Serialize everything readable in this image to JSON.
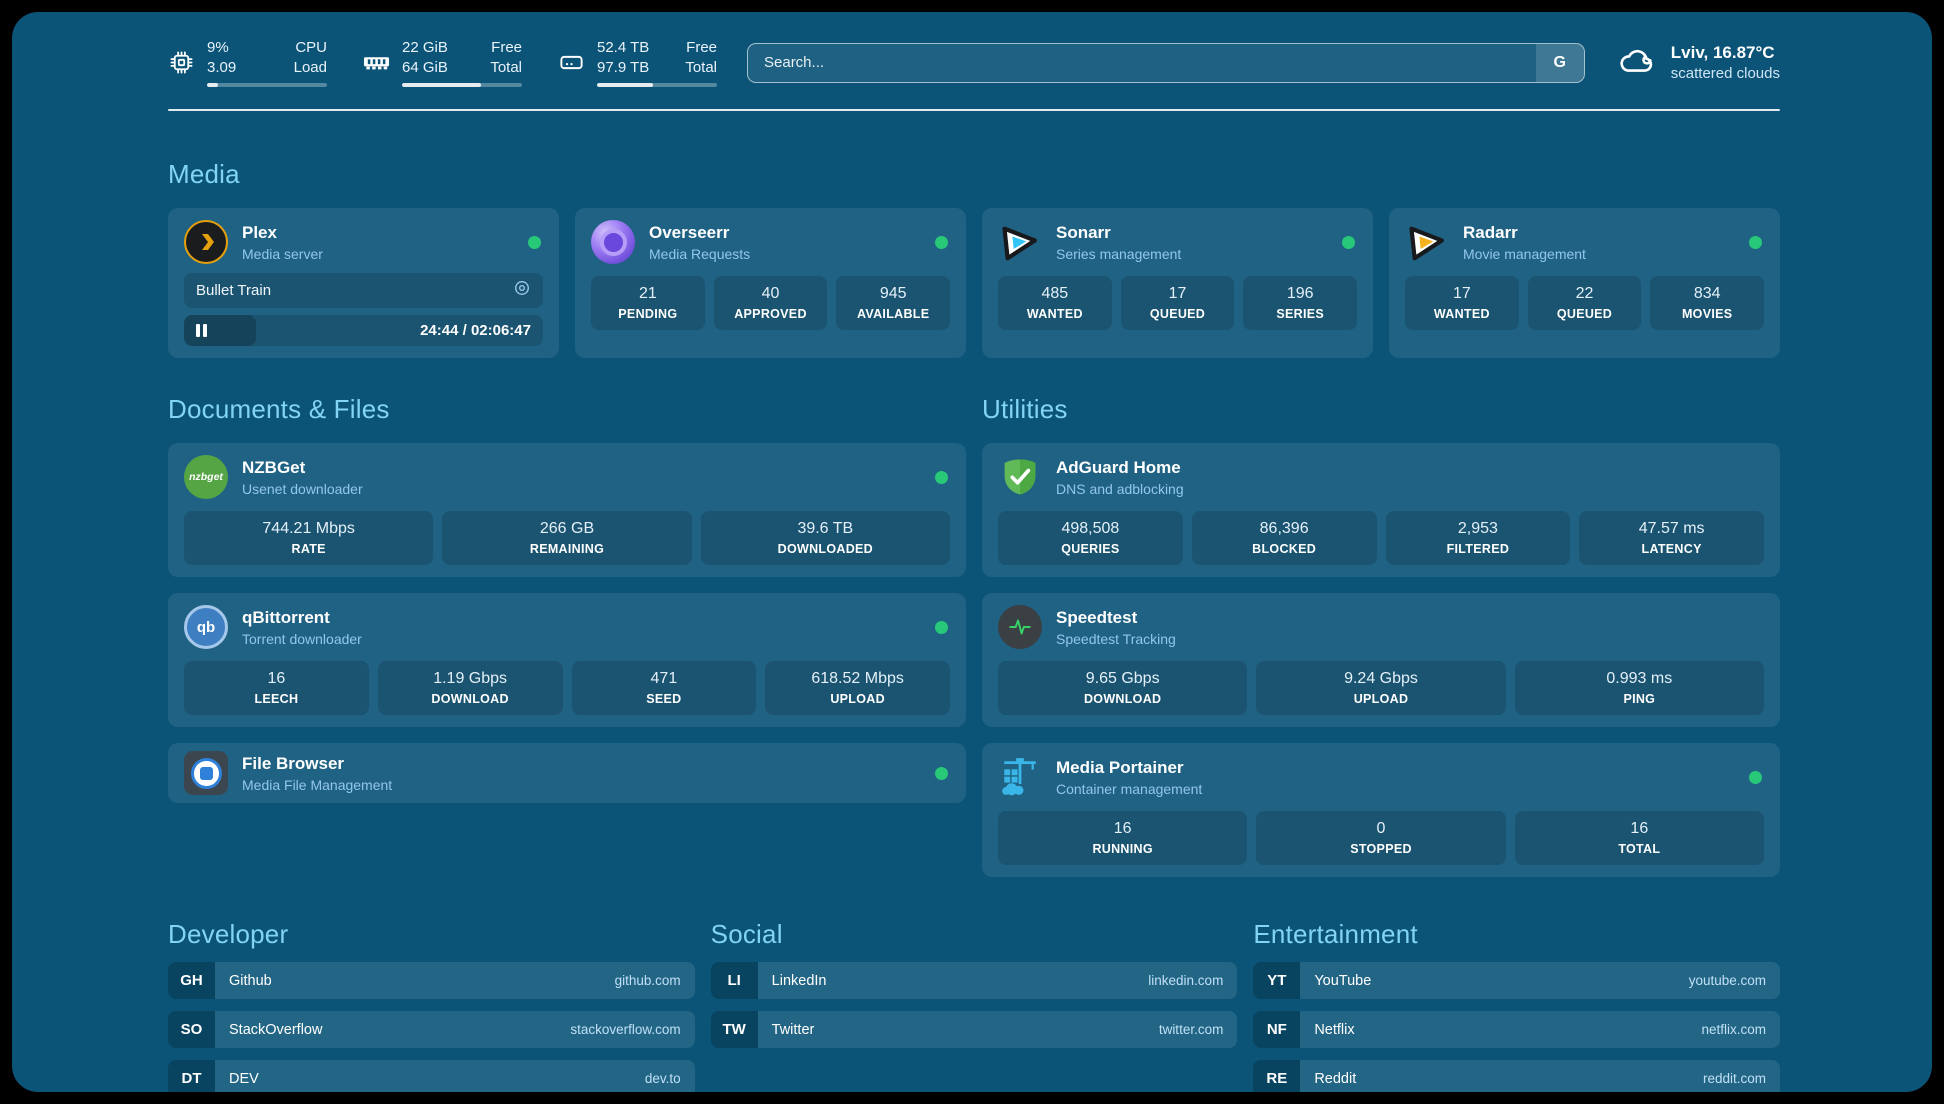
{
  "header": {
    "stats": [
      {
        "icon": "cpu-icon",
        "value_top": "9%",
        "value_bottom": "3.09",
        "label_top": "CPU",
        "label_bottom": "Load",
        "progress_pct": 9
      },
      {
        "icon": "ram-icon",
        "value_top": "22 GiB",
        "value_bottom": "64 GiB",
        "label_top": "Free",
        "label_bottom": "Total",
        "progress_pct": 66
      },
      {
        "icon": "disk-icon",
        "value_top": "52.4 TB",
        "value_bottom": "97.9 TB",
        "label_top": "Free",
        "label_bottom": "Total",
        "progress_pct": 47
      }
    ],
    "search": {
      "placeholder": "Search...",
      "button_label": "G"
    },
    "weather": {
      "icon": "cloud-icon",
      "location_temp": "Lviv, 16.87°C",
      "condition": "scattered clouds"
    }
  },
  "media": {
    "title": "Media",
    "plex": {
      "icon": "plex-icon",
      "name": "Plex",
      "subtitle": "Media server",
      "online": true,
      "now_playing": {
        "title": "Bullet Train",
        "time": "24:44 / 02:06:47",
        "progress_pct": 20
      }
    },
    "overseerr": {
      "icon": "overseerr-icon",
      "name": "Overseerr",
      "subtitle": "Media Requests",
      "online": true,
      "stats": [
        {
          "value": "21",
          "label": "PENDING"
        },
        {
          "value": "40",
          "label": "APPROVED"
        },
        {
          "value": "945",
          "label": "AVAILABLE"
        }
      ]
    },
    "sonarr": {
      "icon": "sonarr-icon",
      "name": "Sonarr",
      "subtitle": "Series management",
      "online": true,
      "stats": [
        {
          "value": "485",
          "label": "WANTED"
        },
        {
          "value": "17",
          "label": "QUEUED"
        },
        {
          "value": "196",
          "label": "SERIES"
        }
      ]
    },
    "radarr": {
      "icon": "radarr-icon",
      "name": "Radarr",
      "subtitle": "Movie management",
      "online": true,
      "stats": [
        {
          "value": "17",
          "label": "WANTED"
        },
        {
          "value": "22",
          "label": "QUEUED"
        },
        {
          "value": "834",
          "label": "MOVIES"
        }
      ]
    }
  },
  "documents": {
    "title": "Documents & Files",
    "nzbget": {
      "icon": "nzbget-icon",
      "icon_text": "nzbget",
      "name": "NZBGet",
      "subtitle": "Usenet downloader",
      "online": true,
      "stats": [
        {
          "value": "744.21 Mbps",
          "label": "RATE"
        },
        {
          "value": "266 GB",
          "label": "REMAINING"
        },
        {
          "value": "39.6 TB",
          "label": "DOWNLOADED"
        }
      ]
    },
    "qbittorrent": {
      "icon": "qbittorrent-icon",
      "icon_text": "qb",
      "name": "qBittorrent",
      "subtitle": "Torrent downloader",
      "online": true,
      "stats": [
        {
          "value": "16",
          "label": "LEECH"
        },
        {
          "value": "1.19 Gbps",
          "label": "DOWNLOAD"
        },
        {
          "value": "471",
          "label": "SEED"
        },
        {
          "value": "618.52 Mbps",
          "label": "UPLOAD"
        }
      ]
    },
    "filebrowser": {
      "icon": "filebrowser-icon",
      "name": "File Browser",
      "subtitle": "Media File Management",
      "online": true
    }
  },
  "utilities": {
    "title": "Utilities",
    "adguard": {
      "icon": "adguard-icon",
      "name": "AdGuard Home",
      "subtitle": "DNS and adblocking",
      "stats": [
        {
          "value": "498,508",
          "label": "QUERIES"
        },
        {
          "value": "86,396",
          "label": "BLOCKED"
        },
        {
          "value": "2,953",
          "label": "FILTERED"
        },
        {
          "value": "47.57 ms",
          "label": "LATENCY"
        }
      ]
    },
    "speedtest": {
      "icon": "speedtest-icon",
      "name": "Speedtest",
      "subtitle": "Speedtest Tracking",
      "stats": [
        {
          "value": "9.65 Gbps",
          "label": "DOWNLOAD"
        },
        {
          "value": "9.24 Gbps",
          "label": "UPLOAD"
        },
        {
          "value": "0.993 ms",
          "label": "PING"
        }
      ]
    },
    "portainer": {
      "icon": "portainer-icon",
      "name": "Media Portainer",
      "subtitle": "Container management",
      "online": true,
      "stats": [
        {
          "value": "16",
          "label": "RUNNING"
        },
        {
          "value": "0",
          "label": "STOPPED"
        },
        {
          "value": "16",
          "label": "TOTAL"
        }
      ]
    }
  },
  "bookmarks": {
    "developer": {
      "title": "Developer",
      "items": [
        {
          "abbr": "GH",
          "name": "Github",
          "url": "github.com"
        },
        {
          "abbr": "SO",
          "name": "StackOverflow",
          "url": "stackoverflow.com"
        },
        {
          "abbr": "DT",
          "name": "DEV",
          "url": "dev.to"
        }
      ]
    },
    "social": {
      "title": "Social",
      "items": [
        {
          "abbr": "LI",
          "name": "LinkedIn",
          "url": "linkedin.com"
        },
        {
          "abbr": "TW",
          "name": "Twitter",
          "url": "twitter.com"
        }
      ]
    },
    "entertainment": {
      "title": "Entertainment",
      "items": [
        {
          "abbr": "YT",
          "name": "YouTube",
          "url": "youtube.com"
        },
        {
          "abbr": "NF",
          "name": "Netflix",
          "url": "netflix.com"
        },
        {
          "abbr": "RE",
          "name": "Reddit",
          "url": "reddit.com"
        }
      ]
    }
  },
  "colors": {
    "page_bg": "#0b5478",
    "accent": "#82d4f4",
    "online_green": "#27c878",
    "plex_amber": "#e5a00d"
  }
}
